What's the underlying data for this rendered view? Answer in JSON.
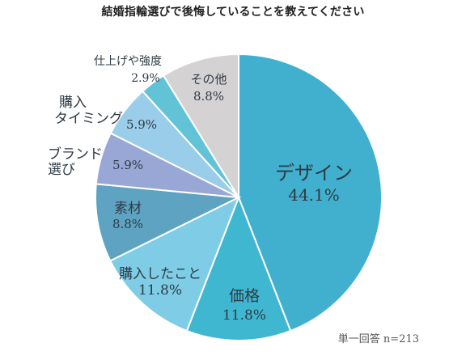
{
  "title": "結婚指輪選びで後悔していることを教えてください",
  "footnote": "単一回答 n=213",
  "chart_data": {
    "type": "pie",
    "title": "結婚指輪選びで後悔していることを教えてください",
    "unit": "%",
    "start_angle_deg": 0,
    "direction": "clockwise",
    "slices": [
      {
        "label": "デザイン",
        "label_lines": [
          "デザイン"
        ],
        "value": 44.1,
        "value_text": "44.1%",
        "color": "#41b0ce"
      },
      {
        "label": "価格",
        "label_lines": [
          "価格"
        ],
        "value": 11.8,
        "value_text": "11.8%",
        "color": "#3fb7d1"
      },
      {
        "label": "購入したこと",
        "label_lines": [
          "購入したこと"
        ],
        "value": 11.8,
        "value_text": "11.8%",
        "color": "#7ecce6"
      },
      {
        "label": "素材",
        "label_lines": [
          "素材"
        ],
        "value": 8.8,
        "value_text": "8.8%",
        "color": "#5ea4c2"
      },
      {
        "label": "ブランド選び",
        "label_lines": [
          "ブランド",
          "選び"
        ],
        "value": 5.9,
        "value_text": "5.9%",
        "color": "#99a7d6"
      },
      {
        "label": "購入タイミング",
        "label_lines": [
          "購入",
          "タイミング"
        ],
        "value": 5.9,
        "value_text": "5.9%",
        "color": "#9acdea"
      },
      {
        "label": "仕上げや強度",
        "label_lines": [
          "仕上げや強度"
        ],
        "value": 2.9,
        "value_text": "2.9%",
        "color": "#62c3d7"
      },
      {
        "label": "その他",
        "label_lines": [
          "その他"
        ],
        "value": 8.8,
        "value_text": "8.8%",
        "color": "#d5d2d3"
      }
    ]
  }
}
